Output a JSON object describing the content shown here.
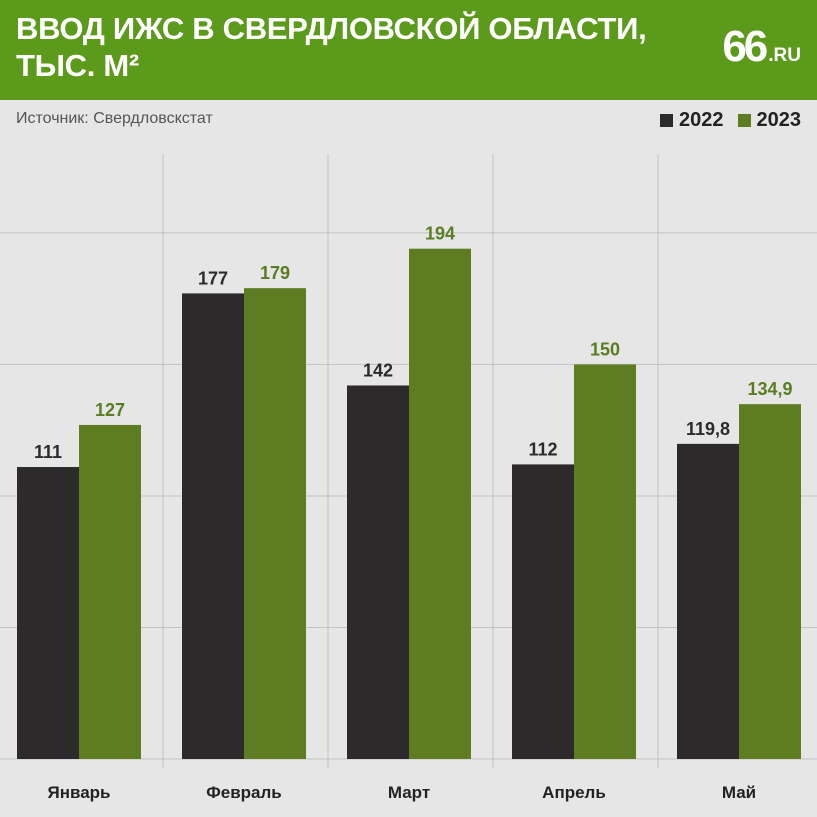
{
  "header": {
    "title_line1": "ВВОД ИЖС В СВЕРДЛОВСКОЙ ОБЛАСТИ,",
    "title_line2": "ТЫС. М²",
    "logo_number": "66",
    "logo_domain": ".RU"
  },
  "source": "Источник: Свердловскстат",
  "colors": {
    "header_bg": "#5b9a1a",
    "series_2022": "#2d2a2b",
    "series_2023": "#5e7d23",
    "label_2022": "#2d2a2b",
    "label_2023": "#5a7d22",
    "grid": "#c2c2c2",
    "background": "#e6e6e6"
  },
  "chart_data": {
    "type": "bar",
    "title": "ВВОД ИЖС В СВЕРДЛОВСКОЙ ОБЛАСТИ, ТЫС. М²",
    "xlabel": "",
    "ylabel": "",
    "categories": [
      "Январь",
      "Февраль",
      "Март",
      "Апрель",
      "Май"
    ],
    "series": [
      {
        "name": "2022",
        "values": [
          111,
          177,
          142,
          112,
          119.8
        ],
        "labels": [
          "111",
          "177",
          "142",
          "112",
          "119,8"
        ]
      },
      {
        "name": "2023",
        "values": [
          127,
          179,
          194,
          150,
          134.9
        ],
        "labels": [
          "127",
          "179",
          "194",
          "150",
          "134,9"
        ]
      }
    ],
    "ylim": [
      0,
      230
    ],
    "gridlines": [
      50,
      100,
      150,
      200
    ],
    "legend": "top-right",
    "grid": true
  }
}
